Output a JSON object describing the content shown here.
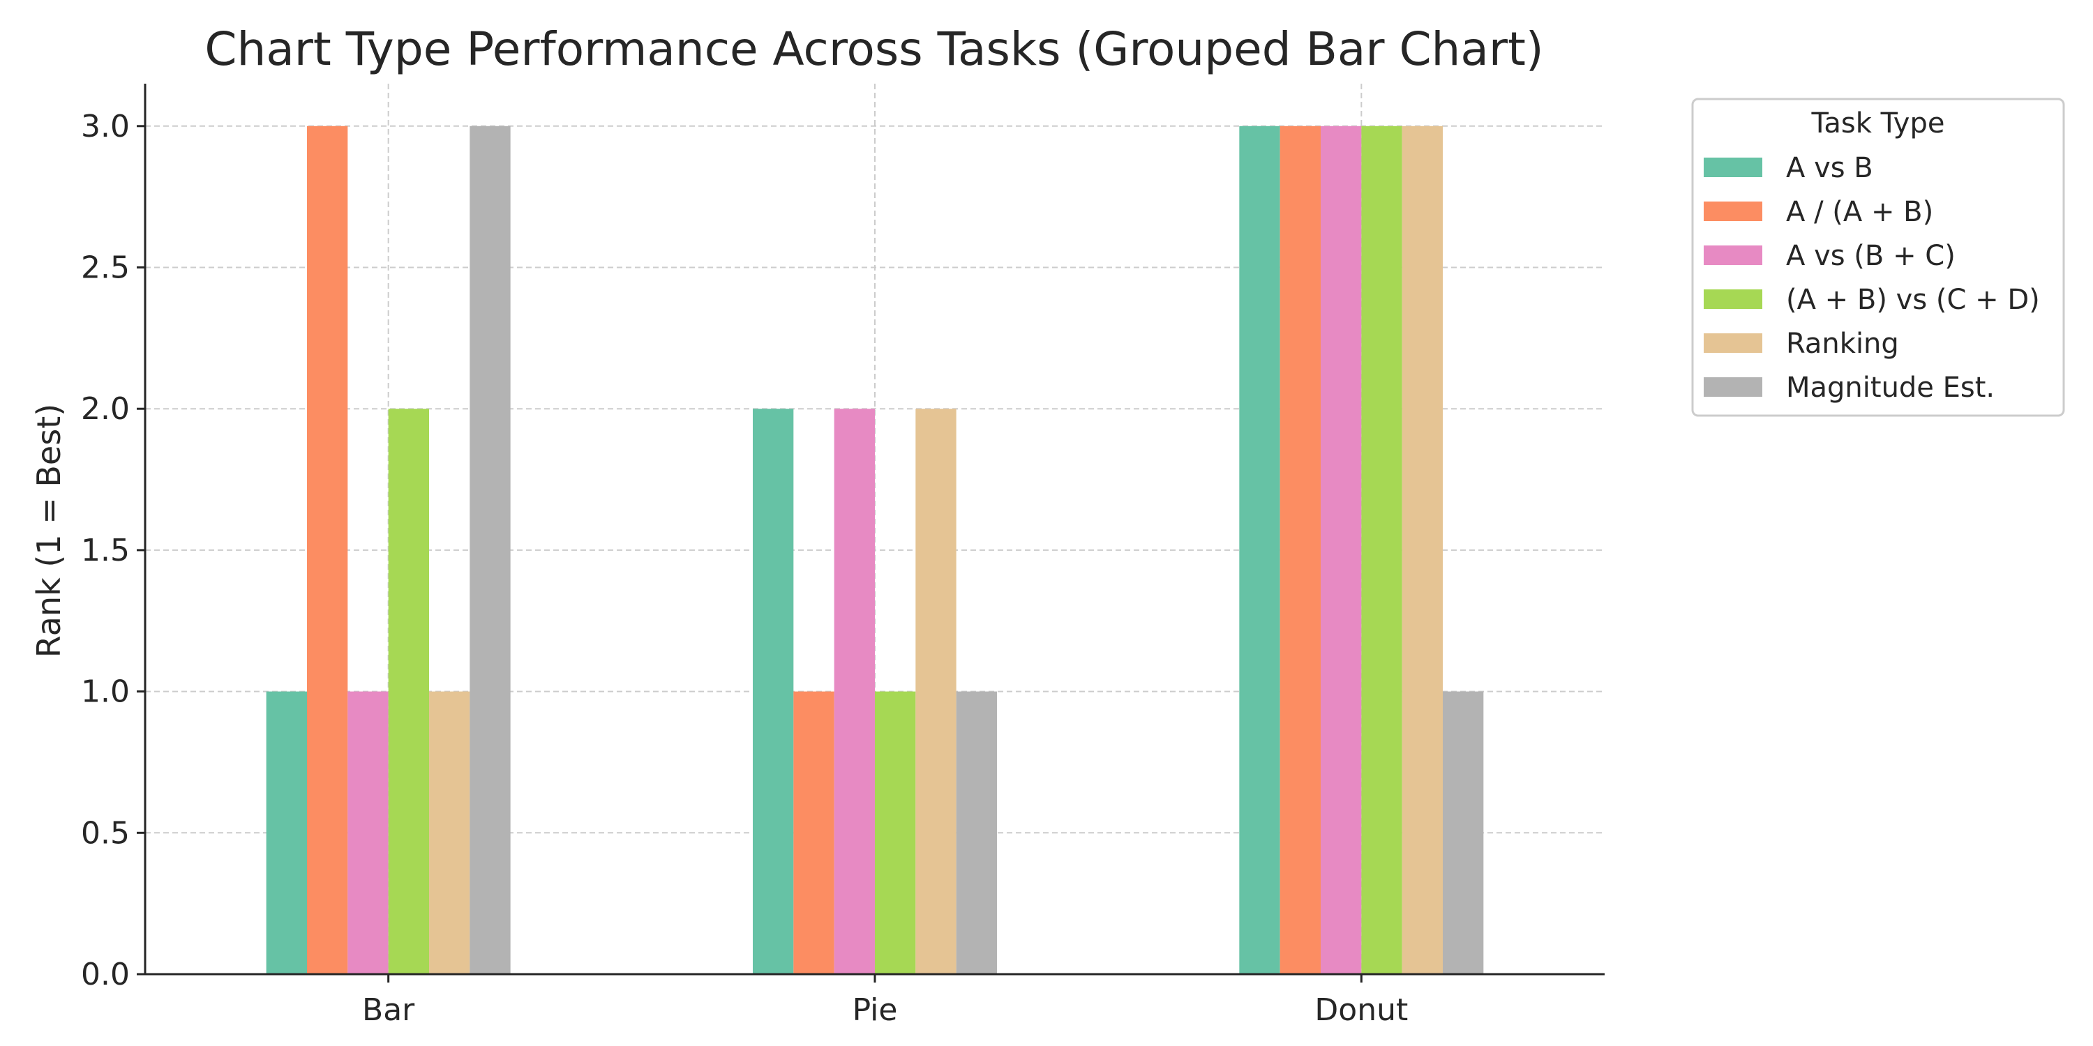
{
  "chart_data": {
    "type": "bar",
    "title": "Chart Type Performance Across Tasks (Grouped Bar Chart)",
    "xlabel": "",
    "ylabel": "Rank (1 = Best)",
    "categories": [
      "Bar",
      "Pie",
      "Donut"
    ],
    "ylim": [
      0,
      3.15
    ],
    "yticks": [
      "0.0",
      "0.5",
      "1.0",
      "1.5",
      "2.0",
      "2.5",
      "3.0"
    ],
    "grid": true,
    "legend": {
      "title": "Task Type",
      "placement": "outside-top-right"
    },
    "series": [
      {
        "name": "A vs B",
        "color": "#66c2a5",
        "values": [
          1,
          2,
          3
        ]
      },
      {
        "name": "A / (A + B)",
        "color": "#fc8d62",
        "values": [
          3,
          1,
          3
        ]
      },
      {
        "name": "A vs (B + C)",
        "color": "#e78ac3",
        "values": [
          1,
          2,
          3
        ]
      },
      {
        "name": "(A + B) vs (C + D)",
        "color": "#a6d854",
        "values": [
          2,
          1,
          3
        ]
      },
      {
        "name": "Ranking",
        "color": "#e5c494",
        "values": [
          1,
          2,
          3
        ]
      },
      {
        "name": "Magnitude Est.",
        "color": "#b3b3b3",
        "values": [
          3,
          1,
          1
        ]
      }
    ]
  }
}
